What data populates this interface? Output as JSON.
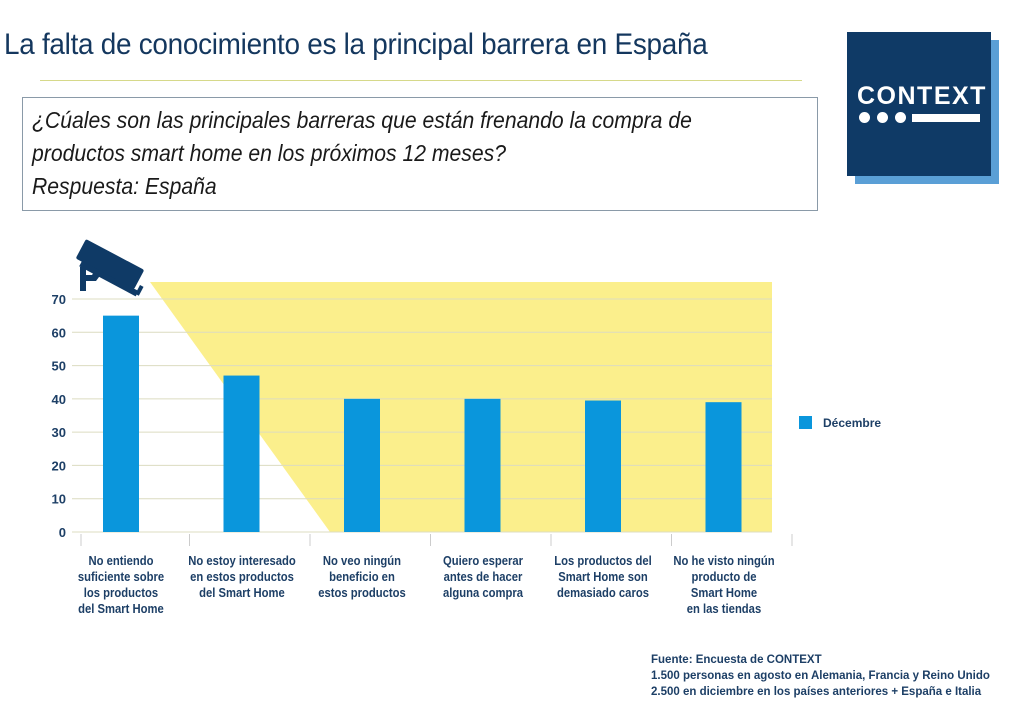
{
  "header": {
    "title": "La falta de conocimiento es la principal barrera en España"
  },
  "question": {
    "lines": [
      "¿Cúales son las principales barreras que están frenando la compra de",
      "productos smart home en los próximos 12 meses?",
      "Respuesta: España"
    ]
  },
  "logo": {
    "text": "CONTEXT",
    "colors": {
      "background": "#0f3a66",
      "shadow": "#5a9fd6"
    }
  },
  "decoration": {
    "icon": "security-camera-icon",
    "beam_color": "#fbef8c"
  },
  "chart_data": {
    "type": "bar",
    "title": "",
    "xlabel": "",
    "ylabel": "",
    "ylim": [
      0,
      70
    ],
    "yticks": [
      0,
      10,
      20,
      30,
      40,
      50,
      60,
      70
    ],
    "grid": true,
    "legend_position": "right",
    "categories": [
      [
        "No entiendo",
        "suficiente sobre",
        "los productos",
        "del Smart Home"
      ],
      [
        "No estoy interesado",
        "en estos productos",
        "del Smart Home"
      ],
      [
        "No veo ningún",
        "beneficio en",
        "estos productos"
      ],
      [
        "Quiero esperar",
        "antes de hacer",
        "alguna compra"
      ],
      [
        "Los productos del",
        "Smart Home son",
        "demasiado caros"
      ],
      [
        "No he visto ningún",
        "producto de",
        "Smart Home",
        "en las tiendas"
      ]
    ],
    "series": [
      {
        "name": "Décembre",
        "color": "#0a96dc",
        "values": [
          65,
          47,
          40,
          40,
          39.5,
          39
        ]
      }
    ]
  },
  "source": {
    "lines": [
      "Fuente: Encuesta de CONTEXT",
      "1.500 personas en agosto en Alemania, Francia y Reino Unido",
      "2.500 en diciembre en los países anteriores  + España e Italia"
    ]
  }
}
